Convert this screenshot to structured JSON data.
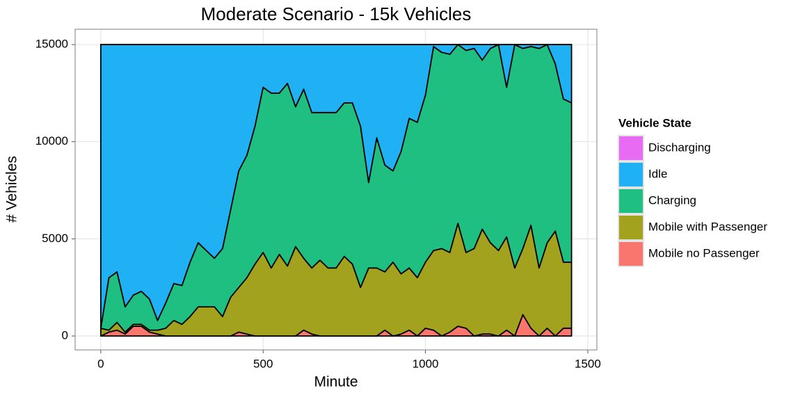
{
  "chart_data": {
    "type": "stacked-area",
    "title": "Moderate Scenario - 15k Vehicles",
    "x_label": "Minute",
    "y_label": "# Vehicles",
    "legend_title": "Vehicle State",
    "x": [
      0,
      25,
      50,
      75,
      100,
      125,
      150,
      175,
      200,
      225,
      250,
      275,
      300,
      325,
      350,
      375,
      400,
      425,
      450,
      475,
      500,
      525,
      550,
      575,
      600,
      625,
      650,
      675,
      700,
      725,
      750,
      775,
      800,
      825,
      850,
      875,
      900,
      925,
      950,
      975,
      1000,
      1025,
      1050,
      1075,
      1100,
      1125,
      1150,
      1175,
      1200,
      1225,
      1250,
      1275,
      1300,
      1325,
      1350,
      1375,
      1400,
      1425,
      1450
    ],
    "series": [
      {
        "name": "Discharging",
        "color": "#E76BF3",
        "values": [
          0,
          0,
          0,
          0,
          0,
          0,
          0,
          0,
          0,
          0,
          0,
          0,
          0,
          0,
          0,
          0,
          0,
          0,
          0,
          0,
          0,
          0,
          0,
          0,
          0,
          0,
          0,
          0,
          0,
          0,
          0,
          0,
          0,
          0,
          0,
          0,
          0,
          0,
          0,
          0,
          0,
          0,
          0,
          0,
          0,
          0,
          0,
          0,
          0,
          0,
          0,
          0,
          0,
          0,
          0,
          0,
          0,
          0,
          0
        ]
      },
      {
        "name": "Idle",
        "color": "#1FB1F4",
        "values": [
          14600,
          12000,
          11700,
          13500,
          12900,
          12700,
          13100,
          14200,
          13300,
          12300,
          12400,
          11200,
          10200,
          10600,
          11000,
          10500,
          8500,
          6500,
          5700,
          4200,
          2200,
          2500,
          2500,
          2000,
          3200,
          2300,
          3500,
          3500,
          3500,
          3500,
          3000,
          3000,
          4200,
          7100,
          4800,
          6200,
          6500,
          5500,
          3800,
          4000,
          2600,
          100,
          400,
          500,
          0,
          300,
          200,
          800,
          200,
          0,
          2200,
          0,
          200,
          100,
          200,
          0,
          1000,
          2800,
          3000
        ]
      },
      {
        "name": "Charging",
        "color": "#1FBF82",
        "values": [
          0,
          2700,
          2600,
          1300,
          1500,
          1700,
          1600,
          500,
          1300,
          1900,
          2000,
          2800,
          3300,
          2900,
          2500,
          3500,
          4500,
          6000,
          6300,
          7100,
          8500,
          9000,
          8300,
          9400,
          7200,
          8700,
          8000,
          7600,
          8000,
          8000,
          7900,
          8300,
          8300,
          4400,
          6700,
          5500,
          4700,
          6300,
          7700,
          8000,
          8600,
          10500,
          10100,
          10200,
          9200,
          10400,
          10300,
          8700,
          10000,
          10600,
          7700,
          11500,
          10300,
          9200,
          11300,
          10200,
          8600,
          8400,
          8200
        ]
      },
      {
        "name": "Mobile with Passenger",
        "color": "#A3A21F",
        "values": [
          400,
          100,
          400,
          100,
          100,
          100,
          100,
          200,
          400,
          800,
          600,
          1000,
          1500,
          1500,
          1500,
          1000,
          2000,
          2300,
          2900,
          3700,
          4300,
          3500,
          4200,
          3600,
          4600,
          3700,
          3400,
          3900,
          3500,
          3500,
          4100,
          3700,
          2500,
          3500,
          3500,
          3000,
          3800,
          3100,
          3200,
          3000,
          3400,
          4100,
          4500,
          4100,
          5300,
          3900,
          4500,
          5400,
          4700,
          4400,
          4800,
          3500,
          3400,
          5300,
          3500,
          4400,
          5400,
          3400,
          3400
        ]
      },
      {
        "name": "Mobile no Passenger",
        "color": "#F8766D",
        "values": [
          0,
          200,
          300,
          100,
          500,
          500,
          200,
          100,
          0,
          0,
          0,
          0,
          0,
          0,
          0,
          0,
          0,
          200,
          100,
          0,
          0,
          0,
          0,
          0,
          0,
          300,
          100,
          0,
          0,
          0,
          0,
          0,
          0,
          0,
          0,
          300,
          0,
          100,
          300,
          0,
          400,
          300,
          0,
          200,
          500,
          400,
          0,
          100,
          100,
          0,
          300,
          0,
          1100,
          400,
          0,
          400,
          0,
          400,
          400
        ]
      }
    ],
    "xlim": [
      -79,
      1528
    ],
    "ylim": [
      -716,
      15790
    ],
    "xticks": [
      0,
      500,
      1000,
      1500
    ],
    "yticks": [
      0,
      5000,
      10000,
      15000
    ],
    "grid": true
  }
}
